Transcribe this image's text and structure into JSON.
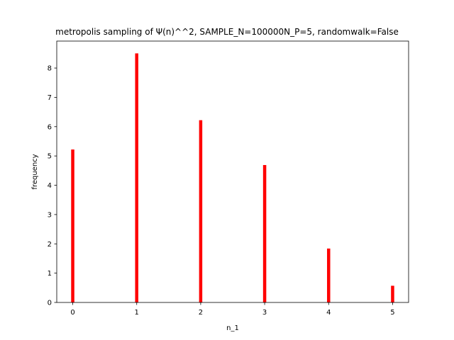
{
  "chart_data": {
    "type": "bar",
    "title": "metropolis sampling of Ψ(n)^^2, SAMPLE_N=100000N_P=5, randomwalk=False",
    "xlabel": "n_1",
    "ylabel": "frequency",
    "x": [
      0,
      1,
      2,
      3,
      4,
      5
    ],
    "values": [
      5.22,
      8.5,
      6.22,
      4.69,
      1.84,
      0.57
    ],
    "xlim": [
      -0.25,
      5.25
    ],
    "ylim": [
      0,
      8.92
    ],
    "xticks": [
      "0",
      "1",
      "2",
      "3",
      "4",
      "5"
    ],
    "yticks": [
      "0",
      "1",
      "2",
      "3",
      "4",
      "5",
      "6",
      "7",
      "8"
    ],
    "bar_color": "#ff0000",
    "grid": false,
    "legend": "none"
  }
}
